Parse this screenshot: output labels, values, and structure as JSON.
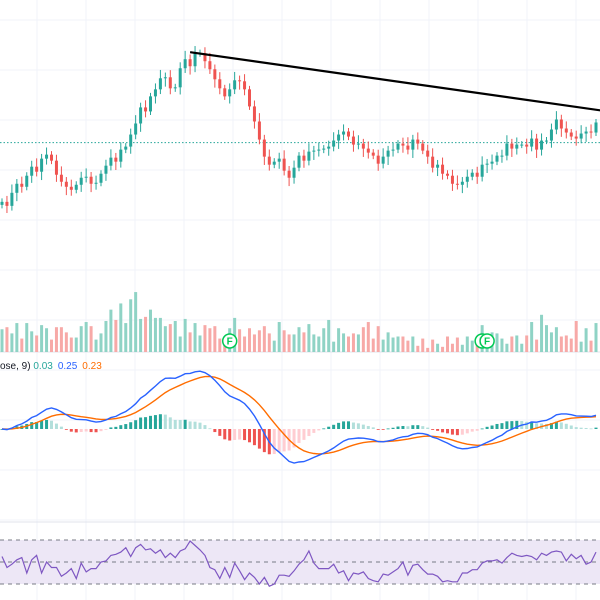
{
  "chart_data": {
    "type": "candlestick",
    "panes": [
      "price",
      "volume",
      "macd",
      "rsi"
    ],
    "colors": {
      "up": "#26a69a",
      "down": "#ef5350",
      "up_volume": "#8fd3c5",
      "down_volume": "#f7a9a7",
      "macd_line": "#2962ff",
      "signal_line": "#ff6d00",
      "hist_up_strong": "#26a69a",
      "hist_up_weak": "#b2dfdb",
      "hist_down_strong": "#ef5350",
      "hist_down_weak": "#ffcdd2",
      "rsi_line": "#7e57c2",
      "rsi_band": "#ede7f6",
      "trendline": "#000000",
      "price_line": "#26a69a",
      "event_marker": "#00c853"
    },
    "price": {
      "closes": [
        40.6,
        40.2,
        41.5,
        42.4,
        42.1,
        43.2,
        44.1,
        43.6,
        44.9,
        45.3,
        44.7,
        43.3,
        42.6,
        42.1,
        41.8,
        42.3,
        43.0,
        43.1,
        42.4,
        42.5,
        43.4,
        44.2,
        45.0,
        44.6,
        45.8,
        46.1,
        47.3,
        48.4,
        50.0,
        49.6,
        51.1,
        51.8,
        52.9,
        53.0,
        51.9,
        52.0,
        53.9,
        54.8,
        54.1,
        55.4,
        55.4,
        54.6,
        53.8,
        52.8,
        51.9,
        51.1,
        51.8,
        52.7,
        52.6,
        51.8,
        50.1,
        48.6,
        46.8,
        45.1,
        44.3,
        44.6,
        44.9,
        43.7,
        43.0,
        44.0,
        45.2,
        44.7,
        45.6,
        45.7,
        45.8,
        45.9,
        46.1,
        46.7,
        47.3,
        47.6,
        47.1,
        46.3,
        46.4,
        45.9,
        45.5,
        45.2,
        44.4,
        45.1,
        45.7,
        45.8,
        46.4,
        46.2,
        45.8,
        46.8,
        46.4,
        45.7,
        45.1,
        44.0,
        44.3,
        43.4,
        43.2,
        42.4,
        42.3,
        42.6,
        43.1,
        43.5,
        43.1,
        44.3,
        44.4,
        44.6,
        45.2,
        45.2,
        46.4,
        45.9,
        46.3,
        46.3,
        46.1,
        46.9,
        45.8,
        46.7,
        46.7,
        47.8,
        48.8,
        47.9,
        47.5,
        47.1,
        46.9,
        47.4,
        47.6,
        47.5,
        48.5
      ],
      "ylim": [
        37.3,
        59.2
      ],
      "price_line": 46.5,
      "trendline": [
        {
          "index": 38,
          "price": 55.5
        },
        {
          "index": 121,
          "price": 49.7
        }
      ]
    },
    "volume": {
      "values": [
        22,
        24,
        18,
        28,
        13,
        28,
        20,
        16,
        26,
        23,
        12,
        24,
        24,
        19,
        14,
        14,
        25,
        29,
        25,
        12,
        18,
        30,
        41,
        31,
        47,
        28,
        51,
        58,
        32,
        34,
        41,
        33,
        33,
        25,
        27,
        30,
        15,
        32,
        19,
        28,
        16,
        26,
        23,
        25,
        13,
        11,
        23,
        33,
        22,
        15,
        23,
        17,
        21,
        25,
        18,
        11,
        29,
        21,
        17,
        17,
        24,
        19,
        27,
        17,
        15,
        23,
        31,
        10,
        23,
        18,
        15,
        18,
        17,
        24,
        29,
        13,
        25,
        12,
        19,
        14,
        15,
        15,
        11,
        15,
        6,
        13,
        4,
        12,
        8,
        5,
        15,
        8,
        14,
        7,
        15,
        11,
        12,
        26,
        17,
        19,
        18,
        13,
        8,
        15,
        16,
        8,
        16,
        29,
        12,
        36,
        26,
        19,
        24,
        15,
        16,
        13,
        30,
        10,
        23,
        11,
        28
      ],
      "max": 60,
      "event_markers": [
        {
          "index": 46,
          "glyph": "F"
        },
        {
          "index": 97,
          "glyph": "F"
        },
        {
          "index": 98,
          "glyph": "F"
        }
      ]
    },
    "macd": {
      "label_prefix": "ose, 9)",
      "values": [
        "0.03",
        "0.25",
        "0.23"
      ],
      "ylim": [
        -1.6,
        1.6
      ]
    },
    "rsi": {
      "values": [
        55,
        45,
        48,
        52,
        54,
        40,
        52,
        56,
        40,
        50,
        45,
        45,
        37,
        40,
        44,
        35,
        49,
        41,
        44,
        44,
        50,
        51,
        56,
        57,
        59,
        63,
        55,
        63,
        66,
        61,
        62,
        58,
        61,
        54,
        58,
        54,
        60,
        62,
        69,
        65,
        61,
        56,
        45,
        43,
        35,
        45,
        36,
        49,
        42,
        34,
        40,
        36,
        30,
        36,
        28,
        30,
        38,
        38,
        37,
        42,
        48,
        52,
        60,
        49,
        44,
        44,
        44,
        48,
        40,
        42,
        33,
        40,
        39,
        41,
        35,
        33,
        32,
        39,
        38,
        41,
        44,
        50,
        38,
        47,
        48,
        43,
        39,
        39,
        37,
        32,
        33,
        32,
        32,
        40,
        40,
        43,
        43,
        49,
        51,
        51,
        52,
        49,
        54,
        58,
        56,
        55,
        56,
        55,
        52,
        58,
        56,
        59,
        60,
        59,
        51,
        57,
        53,
        56,
        48,
        50,
        59
      ],
      "upper": 70,
      "middle": 50,
      "lower": 30
    }
  }
}
